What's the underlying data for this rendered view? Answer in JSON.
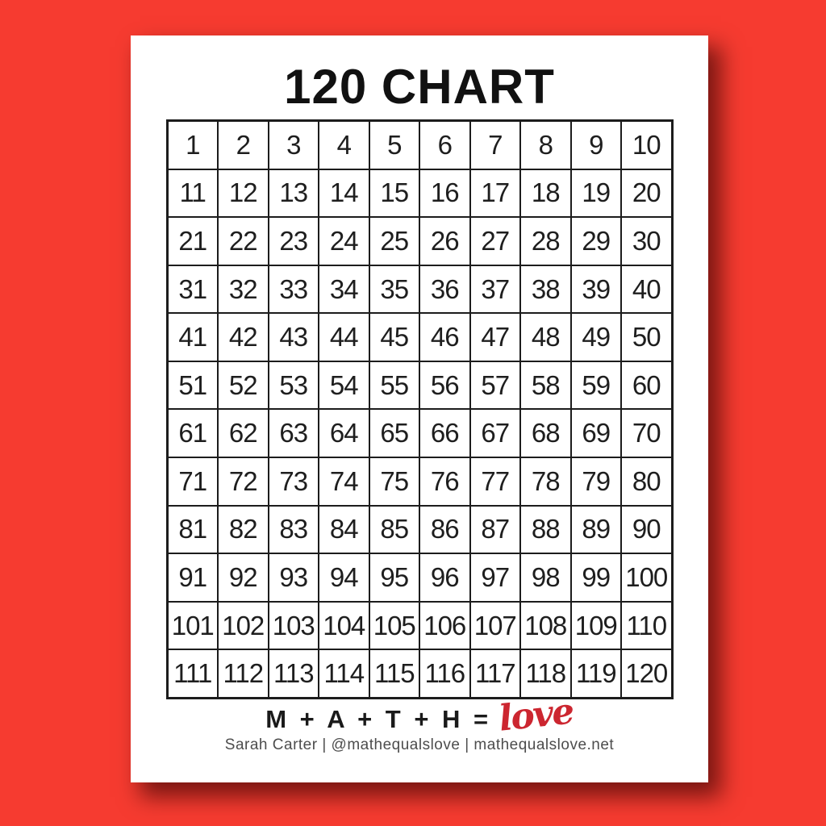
{
  "page": {
    "title": "120 CHART",
    "grid": {
      "columns": 10,
      "rows": [
        [
          1,
          2,
          3,
          4,
          5,
          6,
          7,
          8,
          9,
          10
        ],
        [
          11,
          12,
          13,
          14,
          15,
          16,
          17,
          18,
          19,
          20
        ],
        [
          21,
          22,
          23,
          24,
          25,
          26,
          27,
          28,
          29,
          30
        ],
        [
          31,
          32,
          33,
          34,
          35,
          36,
          37,
          38,
          39,
          40
        ],
        [
          41,
          42,
          43,
          44,
          45,
          46,
          47,
          48,
          49,
          50
        ],
        [
          51,
          52,
          53,
          54,
          55,
          56,
          57,
          58,
          59,
          60
        ],
        [
          61,
          62,
          63,
          64,
          65,
          66,
          67,
          68,
          69,
          70
        ],
        [
          71,
          72,
          73,
          74,
          75,
          76,
          77,
          78,
          79,
          80
        ],
        [
          81,
          82,
          83,
          84,
          85,
          86,
          87,
          88,
          89,
          90
        ],
        [
          91,
          92,
          93,
          94,
          95,
          96,
          97,
          98,
          99,
          100
        ],
        [
          101,
          102,
          103,
          104,
          105,
          106,
          107,
          108,
          109,
          110
        ],
        [
          111,
          112,
          113,
          114,
          115,
          116,
          117,
          118,
          119,
          120
        ]
      ]
    },
    "footer": {
      "equation_prefix": "M + A + T + H =",
      "equation_script_word": "love",
      "credit": "Sarah Carter  |  @mathequalslove  |  mathequalslove.net"
    },
    "colors": {
      "background_red": "#f63b30",
      "paper_white": "#ffffff",
      "grid_line_black": "#1c1c1c",
      "number_black": "#1e1e1e",
      "script_love_red": "#cc2630",
      "credit_gray": "#4d4d4d"
    }
  }
}
